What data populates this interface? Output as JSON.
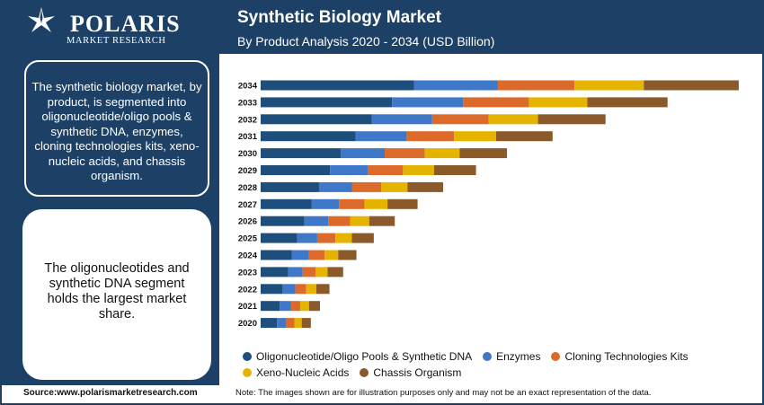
{
  "header": {
    "logo_name": "POLARIS",
    "logo_sub": "MARKET RESEARCH",
    "title": "Synthetic Biology Market",
    "subtitle": "By Product Analysis 2020 - 2034 (USD Billion)"
  },
  "sidebar": {
    "box1_text": "The synthetic biology market, by product, is segmented into oligonucleotide/oligo pools & synthetic DNA, enzymes, cloning technologies kits, xeno-nucleic acids, and chassis organism.",
    "box2_text": "The oligonucleotides and synthetic DNA segment holds the largest market share."
  },
  "chart_data": {
    "type": "bar",
    "orientation": "horizontal",
    "stacked": true,
    "title": "Synthetic Biology Market",
    "subtitle": "By Product Analysis 2020 - 2034 (USD Billion)",
    "categories": [
      "2034",
      "2033",
      "2032",
      "2031",
      "2030",
      "2029",
      "2028",
      "2027",
      "2026",
      "2025",
      "2024",
      "2023",
      "2022",
      "2021",
      "2020"
    ],
    "series": [
      {
        "name": "Oligonucleotide/Oligo Pools & Synthetic DNA",
        "color": "#1e4f7c",
        "values": [
          8.4,
          7.2,
          6.1,
          5.2,
          4.4,
          3.8,
          3.2,
          2.8,
          2.4,
          2.0,
          1.7,
          1.5,
          1.2,
          1.05,
          0.9
        ]
      },
      {
        "name": "Enzymes",
        "color": "#3f78c8",
        "values": [
          4.6,
          3.9,
          3.3,
          2.8,
          2.4,
          2.1,
          1.8,
          1.5,
          1.3,
          1.1,
          0.95,
          0.8,
          0.7,
          0.6,
          0.5
        ]
      },
      {
        "name": "Cloning Technologies Kits",
        "color": "#dc6a2a",
        "values": [
          4.2,
          3.6,
          3.1,
          2.6,
          2.2,
          1.9,
          1.6,
          1.4,
          1.2,
          1.0,
          0.85,
          0.72,
          0.6,
          0.52,
          0.45
        ]
      },
      {
        "name": "Xeno-Nucleic Acids",
        "color": "#e5b400",
        "values": [
          3.8,
          3.2,
          2.7,
          2.3,
          1.9,
          1.7,
          1.45,
          1.25,
          1.05,
          0.9,
          0.75,
          0.65,
          0.55,
          0.48,
          0.4
        ]
      },
      {
        "name": "Chassis Organism",
        "color": "#8b5a2b",
        "values": [
          5.2,
          4.4,
          3.7,
          3.1,
          2.6,
          2.3,
          1.95,
          1.65,
          1.4,
          1.2,
          1.0,
          0.85,
          0.72,
          0.6,
          0.5
        ]
      }
    ],
    "xlim": [
      0,
      26.5
    ],
    "xaxis_visible": false,
    "legend": "bottom"
  },
  "footer": {
    "source": "Source:www.polarismarketresearch.com",
    "note": "Note: The images shown are for illustration purposes only and may not be an exact representation of the data."
  }
}
